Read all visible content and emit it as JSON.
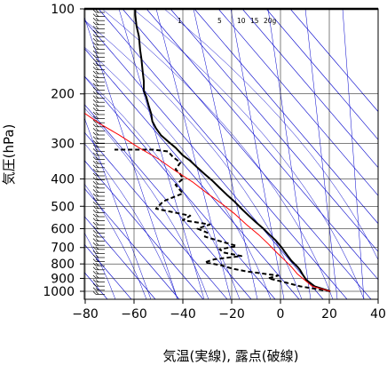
{
  "chart_data": {
    "type": "line",
    "title": "",
    "xlabel": "気温(実線), 露点(破線)",
    "ylabel": "気圧(hPa)",
    "xlim": [
      -80,
      40
    ],
    "ylim": [
      1050,
      100
    ],
    "y_scale": "log",
    "x_ticks": [
      -80,
      -60,
      -40,
      -20,
      0,
      20,
      40
    ],
    "x_tick_labels": [
      "−80",
      "−60",
      "−40",
      "−20",
      "0",
      "20",
      "40"
    ],
    "y_ticks": [
      100,
      200,
      300,
      400,
      500,
      600,
      700,
      800,
      900,
      1000
    ],
    "y_tick_labels": [
      "100",
      "200",
      "300",
      "400",
      "500",
      "600",
      "700",
      "800",
      "900",
      "1000"
    ],
    "grid": true,
    "mixing_ratio_labels": [
      "1",
      "5",
      "10",
      "15",
      "20g"
    ],
    "colors": {
      "temperature": "#000000",
      "dewpoint": "#000000",
      "parcel": "#ff0000",
      "background_lines": "#0000cc"
    },
    "series": [
      {
        "style": "solid",
        "color": "#000000",
        "points": [
          [
            20.4,
            1000
          ],
          [
            14,
            960
          ],
          [
            10.5,
            910
          ],
          [
            9,
            870
          ],
          [
            8,
            840
          ],
          [
            7,
            820
          ],
          [
            4.5,
            780
          ],
          [
            3,
            750
          ],
          [
            1.5,
            720
          ],
          [
            0.5,
            700
          ],
          [
            -2,
            660
          ],
          [
            -4.5,
            630
          ],
          [
            -7,
            600
          ],
          [
            -10,
            570
          ],
          [
            -13,
            540
          ],
          [
            -16,
            510
          ],
          [
            -19,
            480
          ],
          [
            -22,
            455
          ],
          [
            -25,
            430
          ],
          [
            -28,
            405
          ],
          [
            -31,
            385
          ],
          [
            -34,
            365
          ],
          [
            -37,
            345
          ],
          [
            -40,
            330
          ],
          [
            -43,
            310
          ],
          [
            -46,
            295
          ],
          [
            -49,
            280
          ],
          [
            -51,
            265
          ],
          [
            -52.5,
            250
          ],
          [
            -53,
            235
          ],
          [
            -54,
            220
          ],
          [
            -55,
            205
          ],
          [
            -56,
            195
          ],
          [
            -56,
            180
          ],
          [
            -56.5,
            165
          ],
          [
            -57,
            150
          ],
          [
            -57.5,
            140
          ],
          [
            -58,
            125
          ],
          [
            -59,
            115
          ],
          [
            -59.5,
            105
          ],
          [
            -59.5,
            100
          ]
        ]
      },
      {
        "style": "dashed",
        "color": "#000000",
        "points": [
          [
            20.4,
            1000
          ],
          [
            8,
            960
          ],
          [
            2,
            930
          ],
          [
            -5,
            900
          ],
          [
            -1,
            880
          ],
          [
            -14,
            850
          ],
          [
            -20,
            830
          ],
          [
            -24,
            810
          ],
          [
            -31,
            790
          ],
          [
            -27,
            770
          ],
          [
            -16,
            750
          ],
          [
            -23,
            730
          ],
          [
            -25,
            710
          ],
          [
            -21,
            700
          ],
          [
            -18,
            690
          ],
          [
            -26,
            660
          ],
          [
            -31,
            640
          ],
          [
            -30,
            620
          ],
          [
            -34,
            600
          ],
          [
            -29,
            580
          ],
          [
            -40,
            560
          ],
          [
            -37,
            540
          ],
          [
            -51,
            510
          ],
          [
            -48,
            480
          ],
          [
            -40,
            450
          ],
          [
            -42,
            430
          ],
          [
            -43,
            420
          ],
          [
            -40,
            400
          ],
          [
            -41,
            385
          ],
          [
            -43,
            370
          ],
          [
            -41,
            350
          ],
          [
            -44,
            335
          ],
          [
            -46,
            320
          ],
          [
            -52,
            315
          ],
          [
            -60,
            315
          ],
          [
            -68,
            315
          ]
        ]
      },
      {
        "style": "solid",
        "color": "#ff0000",
        "points": [
          [
            20.4,
            1000
          ],
          [
            13,
            960
          ],
          [
            7,
            870
          ],
          [
            4.5,
            820
          ],
          [
            2,
            780
          ],
          [
            -1.5,
            730
          ],
          [
            -5,
            680
          ],
          [
            -9,
            630
          ],
          [
            -14,
            580
          ],
          [
            -19,
            530
          ],
          [
            -24,
            490
          ],
          [
            -30,
            450
          ],
          [
            -36,
            410
          ],
          [
            -43,
            375
          ],
          [
            -50,
            340
          ],
          [
            -58,
            310
          ],
          [
            -66,
            280
          ],
          [
            -74,
            255
          ],
          [
            -80,
            235
          ],
          [
            -86,
            215
          ],
          [
            -92,
            200
          ]
        ]
      }
    ]
  }
}
